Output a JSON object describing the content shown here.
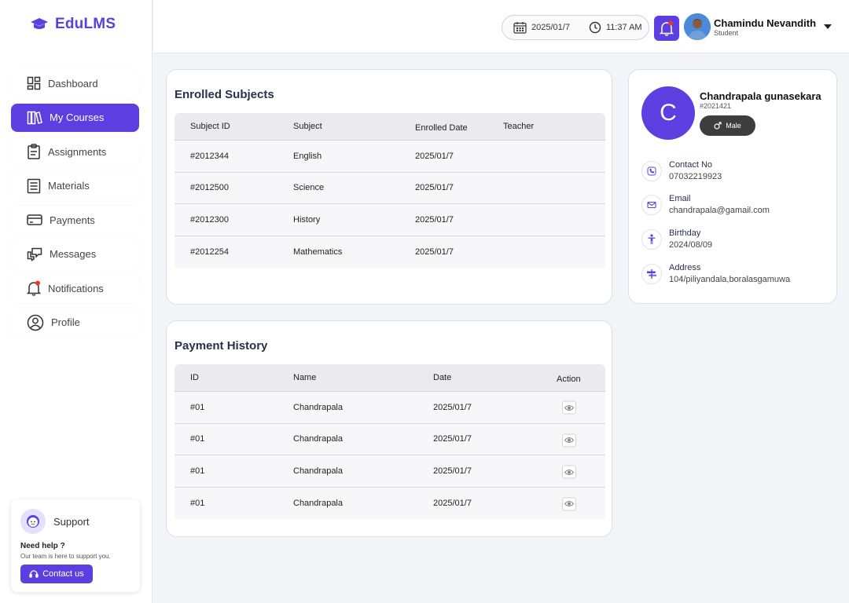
{
  "app": {
    "name": "EduLMS"
  },
  "sidebar": {
    "items": [
      {
        "label": "Dashboard",
        "icon": "dashboard-icon"
      },
      {
        "label": "My Courses",
        "icon": "courses-icon",
        "active": true
      },
      {
        "label": "Assignments",
        "icon": "clipboard-icon"
      },
      {
        "label": "Materials",
        "icon": "document-icon"
      },
      {
        "label": "Payments",
        "icon": "card-icon"
      },
      {
        "label": "Messages",
        "icon": "messages-icon"
      },
      {
        "label": "Notifications",
        "icon": "bell-icon"
      },
      {
        "label": "Profile",
        "icon": "user-circle-icon"
      }
    ],
    "support": {
      "title": "Support",
      "need_help": "Need help ?",
      "subtitle": "Our team is here to support you.",
      "contact_label": "Contact us"
    }
  },
  "header": {
    "date": "2025/01/7",
    "time": "11:37 AM",
    "user": {
      "name": "Chamindu Nevandith",
      "role": "Student"
    }
  },
  "enrolled": {
    "title": "Enrolled Subjects",
    "columns": [
      "Subject ID",
      "Subject",
      "Enrolled Date",
      "Teacher"
    ],
    "rows": [
      [
        "#2012344",
        "English",
        "2025/01/7",
        ""
      ],
      [
        "#2012500",
        "Science",
        "2025/01/7",
        ""
      ],
      [
        "#2012300",
        "History",
        "2025/01/7",
        ""
      ],
      [
        "#2012254",
        "Mathematics",
        "2025/01/7",
        ""
      ]
    ]
  },
  "payments": {
    "title": "Payment History",
    "columns": [
      "ID",
      "Name",
      "Date",
      "Action"
    ],
    "rows": [
      [
        "#01",
        "Chandrapala",
        "2025/01/7"
      ],
      [
        "#01",
        "Chandrapala",
        "2025/01/7"
      ],
      [
        "#01",
        "Chandrapala",
        "2025/01/7"
      ],
      [
        "#01",
        "Chandrapala",
        "2025/01/7"
      ]
    ]
  },
  "profile": {
    "initial": "C",
    "name": "Chandrapala gunasekara",
    "id": "#2021421",
    "gender": "Male",
    "contact_label": "Contact No",
    "contact_value": "07032219923",
    "email_label": "Email",
    "email_value": "chandrapala@gamail.com",
    "birthday_label": "Birthday",
    "birthday_value": "2024/08/09",
    "address_label": "Address",
    "address_value": "104/piliyandala,boralasgamuwa"
  },
  "colors": {
    "accent": "#5b3fe0",
    "notification_dot": "#e53935"
  }
}
